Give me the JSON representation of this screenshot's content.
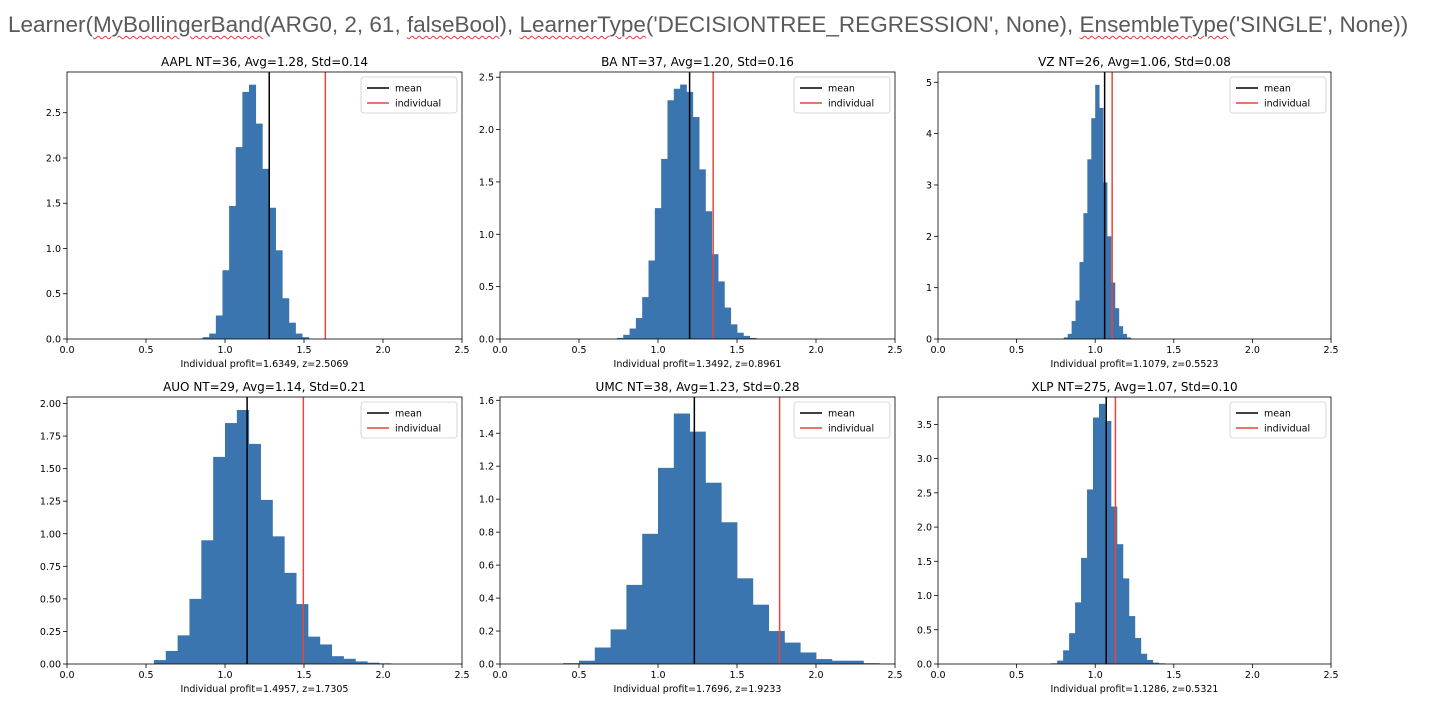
{
  "document": {
    "title_segments": [
      {
        "text": "Learner(",
        "spell": false
      },
      {
        "text": "MyBollingerBand",
        "spell": true
      },
      {
        "text": "(ARG0, 2, 61, ",
        "spell": false
      },
      {
        "text": "falseBool",
        "spell": true
      },
      {
        "text": "), ",
        "spell": false
      },
      {
        "text": "LearnerType",
        "spell": true
      },
      {
        "text": "('DECISIONTREE_REGRESSION',  None), ",
        "spell": false
      },
      {
        "text": "EnsembleType",
        "spell": true
      },
      {
        "text": "('SINGLE',  None))",
        "spell": false
      }
    ]
  },
  "colors": {
    "bar": "#3b75af",
    "mean_line": "#000000",
    "individual_line": "#e8453c",
    "axis": "#000000"
  },
  "chart_data": [
    {
      "type": "bar",
      "title": "AAPL  NT=36, Avg=1.28, Std=0.14",
      "xlabel": "Individual profit=1.6349, z=2.5069",
      "xlim": [
        0.0,
        2.5
      ],
      "ylim": [
        0,
        2.95
      ],
      "xticks": [
        0.0,
        0.5,
        1.0,
        1.5,
        2.0,
        2.5
      ],
      "xtick_labels": [
        "0.0",
        "0.5",
        "1.0",
        "1.5",
        "2.0",
        "2.5"
      ],
      "yticks": [
        0.0,
        0.5,
        1.0,
        1.5,
        2.0,
        2.5
      ],
      "ytick_labels": [
        "0.0",
        "0.5",
        "1.0",
        "1.5",
        "2.0",
        "2.5"
      ],
      "bins": {
        "start": 0.858,
        "width": 0.042,
        "values": [
          0.02,
          0.06,
          0.26,
          0.76,
          1.47,
          2.12,
          2.73,
          2.81,
          2.38,
          1.88,
          1.45,
          0.98,
          0.45,
          0.18,
          0.06,
          0.02
        ]
      },
      "mean": 1.28,
      "individual": 1.6349,
      "legend": [
        "mean",
        "individual"
      ]
    },
    {
      "type": "bar",
      "title": "BA  NT=37, Avg=1.20, Std=0.16",
      "xlabel": "Individual profit=1.3492, z=0.8961",
      "xlim": [
        0.0,
        2.5
      ],
      "ylim": [
        0,
        2.55
      ],
      "xticks": [
        0.0,
        0.5,
        1.0,
        1.5,
        2.0,
        2.5
      ],
      "xtick_labels": [
        "0.0",
        "0.5",
        "1.0",
        "1.5",
        "2.0",
        "2.5"
      ],
      "yticks": [
        0.0,
        0.5,
        1.0,
        1.5,
        2.0,
        2.5
      ],
      "ytick_labels": [
        "0.0",
        "0.5",
        "1.0",
        "1.5",
        "2.0",
        "2.5"
      ],
      "bins": {
        "start": 0.74,
        "width": 0.04,
        "values": [
          0.01,
          0.04,
          0.1,
          0.2,
          0.4,
          0.75,
          1.25,
          1.72,
          2.28,
          2.39,
          2.43,
          2.36,
          2.12,
          1.62,
          1.22,
          0.81,
          0.55,
          0.3,
          0.14,
          0.06,
          0.03,
          0.01
        ]
      },
      "mean": 1.2,
      "individual": 1.3492,
      "legend": [
        "mean",
        "individual"
      ]
    },
    {
      "type": "bar",
      "title": "VZ  NT=26, Avg=1.06, Std=0.08",
      "xlabel": "Individual profit=1.1079, z=0.5523",
      "xlim": [
        0.0,
        2.5
      ],
      "ylim": [
        0,
        5.2
      ],
      "xticks": [
        0.0,
        0.5,
        1.0,
        1.5,
        2.0,
        2.5
      ],
      "xtick_labels": [
        "0.0",
        "0.5",
        "1.0",
        "1.5",
        "2.0",
        "2.5"
      ],
      "yticks": [
        0,
        1,
        2,
        3,
        4,
        5
      ],
      "ytick_labels": [
        "0",
        "1",
        "2",
        "3",
        "4",
        "5"
      ],
      "bins": {
        "start": 0.8,
        "width": 0.025,
        "values": [
          0.03,
          0.1,
          0.35,
          0.75,
          1.5,
          2.45,
          3.5,
          4.3,
          4.95,
          4.5,
          3.05,
          2.0,
          1.1,
          0.6,
          0.25,
          0.1,
          0.03
        ]
      },
      "mean": 1.06,
      "individual": 1.1079,
      "legend": [
        "mean",
        "individual"
      ]
    },
    {
      "type": "bar",
      "title": "AUO  NT=29, Avg=1.14, Std=0.21",
      "xlabel": "Individual profit=1.4957, z=1.7305",
      "xlim": [
        0.0,
        2.5
      ],
      "ylim": [
        0,
        2.05
      ],
      "xticks": [
        0.0,
        0.5,
        1.0,
        1.5,
        2.0,
        2.5
      ],
      "xtick_labels": [
        "0.0",
        "0.5",
        "1.0",
        "1.5",
        "2.0",
        "2.5"
      ],
      "yticks": [
        0.0,
        0.25,
        0.5,
        0.75,
        1.0,
        1.25,
        1.5,
        1.75,
        2.0
      ],
      "ytick_labels": [
        "0.00",
        "0.25",
        "0.50",
        "0.75",
        "1.00",
        "1.25",
        "1.50",
        "1.75",
        "2.00"
      ],
      "bins": {
        "start": 0.55,
        "width": 0.075,
        "values": [
          0.03,
          0.1,
          0.22,
          0.5,
          0.95,
          1.59,
          1.85,
          1.95,
          1.69,
          1.26,
          0.98,
          0.7,
          0.46,
          0.21,
          0.15,
          0.06,
          0.04,
          0.02,
          0.01,
          0.005
        ]
      },
      "mean": 1.14,
      "individual": 1.4957,
      "legend": [
        "mean",
        "individual"
      ]
    },
    {
      "type": "bar",
      "title": "UMC  NT=38, Avg=1.23, Std=0.28",
      "xlabel": "Individual profit=1.7696, z=1.9233",
      "xlim": [
        0.0,
        2.5
      ],
      "ylim": [
        0,
        1.62
      ],
      "xticks": [
        0.0,
        0.5,
        1.0,
        1.5,
        2.0,
        2.5
      ],
      "xtick_labels": [
        "0.0",
        "0.5",
        "1.0",
        "1.5",
        "2.0",
        "2.5"
      ],
      "yticks": [
        0.0,
        0.2,
        0.4,
        0.6,
        0.8,
        1.0,
        1.2,
        1.4,
        1.6
      ],
      "ytick_labels": [
        "0.0",
        "0.2",
        "0.4",
        "0.6",
        "0.8",
        "1.0",
        "1.2",
        "1.4",
        "1.6"
      ],
      "bins": {
        "start": 0.4,
        "width": 0.1,
        "values": [
          0.005,
          0.02,
          0.1,
          0.21,
          0.48,
          0.79,
          1.19,
          1.52,
          1.41,
          1.1,
          0.86,
          0.52,
          0.36,
          0.2,
          0.13,
          0.07,
          0.03,
          0.02,
          0.02,
          0.005,
          0.002
        ]
      },
      "mean": 1.23,
      "individual": 1.7696,
      "legend": [
        "mean",
        "individual"
      ]
    },
    {
      "type": "bar",
      "title": "XLP  NT=275, Avg=1.07, Std=0.10",
      "xlabel": "Individual profit=1.1286, z=0.5321",
      "xlim": [
        0.0,
        2.5
      ],
      "ylim": [
        0,
        3.9
      ],
      "xticks": [
        0.0,
        0.5,
        1.0,
        1.5,
        2.0,
        2.5
      ],
      "xtick_labels": [
        "0.0",
        "0.5",
        "1.0",
        "1.5",
        "2.0",
        "2.5"
      ],
      "yticks": [
        0.0,
        0.5,
        1.0,
        1.5,
        2.0,
        2.5,
        3.0,
        3.5
      ],
      "ytick_labels": [
        "0.0",
        "0.5",
        "1.0",
        "1.5",
        "2.0",
        "2.5",
        "3.0",
        "3.5"
      ],
      "bins": {
        "start": 0.72,
        "width": 0.038,
        "values": [
          0.01,
          0.05,
          0.2,
          0.45,
          0.9,
          1.55,
          2.55,
          3.6,
          3.8,
          3.55,
          2.3,
          1.75,
          1.25,
          0.7,
          0.38,
          0.15,
          0.06,
          0.02,
          0.01
        ]
      },
      "mean": 1.07,
      "individual": 1.1286,
      "legend": [
        "mean",
        "individual"
      ]
    }
  ]
}
